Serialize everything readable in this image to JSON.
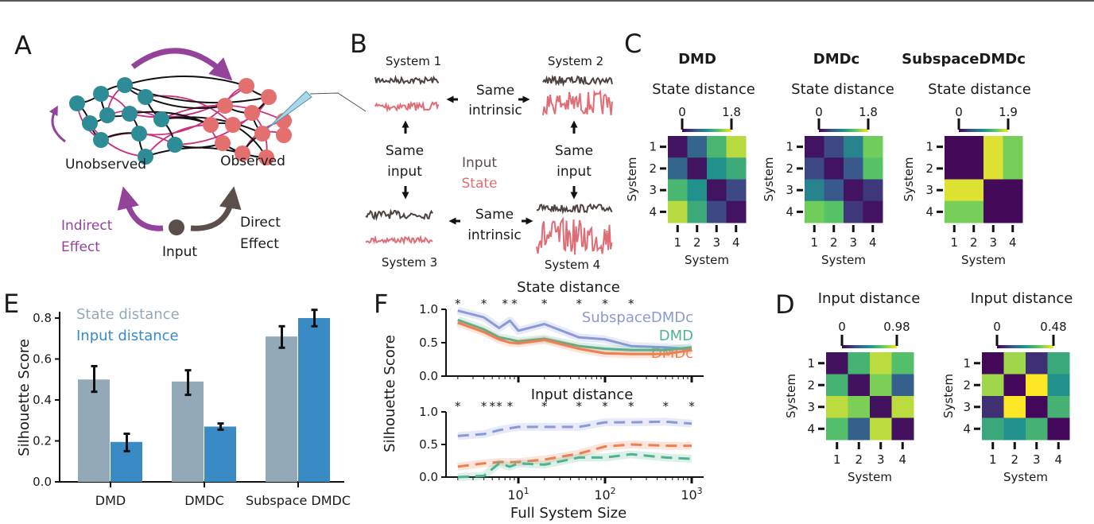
{
  "panel_labels": {
    "a": "A",
    "b": "B",
    "c": "C",
    "d": "D",
    "e": "E",
    "f": "F"
  },
  "colors": {
    "unobserved_node": "#2e8c97",
    "observed_node": "#e46f6f",
    "indirect": "#93439a",
    "direct": "#5b4f4b",
    "input_trace": "#4d423f",
    "state_trace": "#e06d76",
    "state_bar": "#93a9b8",
    "input_bar": "#3a8ac4",
    "subspace": "#8a9ad6",
    "dmd": "#4fb38f",
    "dmdc": "#f07f4f"
  },
  "panel_a": {
    "unobserved": "Unobserved",
    "observed": "Observed",
    "indirect_line1": "Indirect",
    "indirect_line2": "Effect",
    "direct_line1": "Direct",
    "direct_line2": "Effect",
    "input": "Input"
  },
  "panel_b": {
    "system1": "System 1",
    "system2": "System 2",
    "system3": "System 3",
    "system4": "System 4",
    "same": "Same",
    "intrinsic": "intrinsic",
    "input_word": "input",
    "legend_input": "Input",
    "legend_state": "State"
  },
  "chart_data": [
    {
      "id": "E",
      "type": "bar",
      "ylabel": "Silhouette Score",
      "categories": [
        "DMD",
        "DMDC",
        "Subspace DMDC"
      ],
      "ylim": [
        0,
        0.85
      ],
      "yticks": [
        "0.0",
        "0.2",
        "0.4",
        "0.6",
        "0.8"
      ],
      "legend_placement": "top-left",
      "series": [
        {
          "name": "State distance",
          "values": [
            0.5,
            0.49,
            0.71
          ],
          "err_low": [
            0.44,
            0.425,
            0.655
          ],
          "err_high": [
            0.565,
            0.545,
            0.76
          ]
        },
        {
          "name": "Input distance",
          "values": [
            0.195,
            0.27,
            0.8
          ],
          "err_low": [
            0.15,
            0.255,
            0.76
          ],
          "err_high": [
            0.235,
            0.285,
            0.84
          ]
        }
      ]
    },
    {
      "id": "F-top",
      "type": "line",
      "title": "State distance",
      "ylabel": "Silhouette Score",
      "xscale": "log",
      "x": [
        2,
        4,
        6,
        8,
        10,
        20,
        50,
        100,
        200,
        500,
        1000
      ],
      "ylim": [
        0,
        1
      ],
      "yticks": [
        "0.0",
        "0.5",
        "1.0"
      ],
      "significance_x": [
        2,
        4,
        7,
        9,
        20,
        50,
        100,
        200
      ],
      "significance_marker": "*",
      "legend_placement": "right",
      "series": [
        {
          "name": "SubspaceDMDc",
          "values": [
            0.98,
            0.88,
            0.72,
            0.83,
            0.68,
            0.78,
            0.58,
            0.55,
            0.45,
            0.43,
            0.4
          ],
          "style": "solid"
        },
        {
          "name": "DMD",
          "values": [
            0.84,
            0.7,
            0.58,
            0.55,
            0.52,
            0.56,
            0.45,
            0.41,
            0.39,
            0.39,
            0.43
          ],
          "style": "solid"
        },
        {
          "name": "DMDc",
          "values": [
            0.8,
            0.66,
            0.55,
            0.5,
            0.49,
            0.54,
            0.41,
            0.34,
            0.33,
            0.33,
            0.39
          ],
          "style": "solid"
        }
      ]
    },
    {
      "id": "F-bottom",
      "type": "line",
      "title": "Input distance",
      "xlabel": "Full System Size",
      "xscale": "log",
      "x": [
        2,
        4,
        6,
        8,
        10,
        20,
        50,
        100,
        200,
        500,
        1000
      ],
      "xticks": [
        {
          "base": "10",
          "exp": "1",
          "value": 10
        },
        {
          "base": "10",
          "exp": "2",
          "value": 100
        },
        {
          "base": "10",
          "exp": "3",
          "value": 1000
        }
      ],
      "ylim": [
        0,
        1
      ],
      "yticks": [
        "0.0",
        "0.5",
        "1.0"
      ],
      "significance_x": [
        2,
        4,
        5,
        6,
        8,
        20,
        50,
        100,
        200,
        500,
        1000
      ],
      "significance_marker": "*",
      "series": [
        {
          "name": "SubspaceDMDc",
          "values": [
            0.63,
            0.66,
            0.72,
            0.75,
            0.77,
            0.77,
            0.77,
            0.84,
            0.84,
            0.85,
            0.82
          ],
          "style": "dashed"
        },
        {
          "name": "DMDc",
          "values": [
            0.16,
            0.21,
            0.23,
            0.23,
            0.23,
            0.27,
            0.36,
            0.47,
            0.5,
            0.48,
            0.48
          ],
          "style": "dashed"
        },
        {
          "name": "DMD",
          "values": [
            0.0,
            0.02,
            0.21,
            0.16,
            0.21,
            0.19,
            0.3,
            0.3,
            0.35,
            0.3,
            0.28
          ],
          "style": "dashed"
        }
      ]
    },
    {
      "id": "C-DMD",
      "type": "heatmap",
      "heading": "DMD",
      "title": "State distance",
      "xlabel": "System",
      "ylabel": "System",
      "ticks": [
        "1",
        "2",
        "3",
        "4"
      ],
      "colorbar": [
        "0",
        "1.8"
      ],
      "vmax": 1.8,
      "values": [
        [
          0.1,
          0.6,
          1.2,
          1.6
        ],
        [
          0.6,
          0.1,
          0.9,
          1.1
        ],
        [
          1.2,
          0.9,
          0.1,
          0.4
        ],
        [
          1.6,
          1.1,
          0.4,
          0.1
        ]
      ]
    },
    {
      "id": "C-DMDc",
      "type": "heatmap",
      "heading": "DMDc",
      "title": "State distance",
      "xlabel": "System",
      "ylabel": "System",
      "ticks": [
        "1",
        "2",
        "3",
        "4"
      ],
      "colorbar": [
        "0",
        "1.8"
      ],
      "vmax": 1.8,
      "values": [
        [
          0.1,
          0.4,
          0.8,
          1.4
        ],
        [
          0.4,
          0.1,
          0.5,
          1.3
        ],
        [
          0.8,
          0.5,
          0.1,
          0.3
        ],
        [
          1.4,
          1.3,
          0.3,
          0.1
        ]
      ]
    },
    {
      "id": "C-SubspaceDMDc",
      "type": "heatmap",
      "heading": "SubspaceDMDc",
      "title": "State distance",
      "xlabel": "System",
      "ylabel": "System",
      "ticks": [
        "1",
        "2",
        "3",
        "4"
      ],
      "colorbar": [
        "0",
        "1.9"
      ],
      "vmax": 1.9,
      "values": [
        [
          0.05,
          0.05,
          1.8,
          1.5
        ],
        [
          0.05,
          0.05,
          1.8,
          1.5
        ],
        [
          1.8,
          1.8,
          0.05,
          0.05
        ],
        [
          1.5,
          1.5,
          0.05,
          0.05
        ]
      ]
    },
    {
      "id": "D-1",
      "type": "heatmap",
      "title": "Input distance",
      "xlabel": "System",
      "ylabel": "System",
      "ticks": [
        "1",
        "2",
        "3",
        "4"
      ],
      "colorbar": [
        "0",
        "0.98"
      ],
      "vmax": 0.98,
      "values": [
        [
          0.05,
          0.64,
          0.88,
          0.69
        ],
        [
          0.64,
          0.05,
          0.78,
          0.3
        ],
        [
          0.88,
          0.78,
          0.05,
          0.88
        ],
        [
          0.69,
          0.3,
          0.88,
          0.05
        ]
      ]
    },
    {
      "id": "D-2",
      "type": "heatmap",
      "title": "Input distance",
      "xlabel": "System",
      "ylabel": "System",
      "ticks": [
        "1",
        "2",
        "3",
        "4"
      ],
      "colorbar": [
        "0",
        "0.48"
      ],
      "vmax": 0.48,
      "values": [
        [
          0.01,
          0.41,
          0.07,
          0.29
        ],
        [
          0.41,
          0.01,
          0.48,
          0.24
        ],
        [
          0.07,
          0.48,
          0.01,
          0.31
        ],
        [
          0.29,
          0.24,
          0.31,
          0.01
        ]
      ]
    }
  ]
}
